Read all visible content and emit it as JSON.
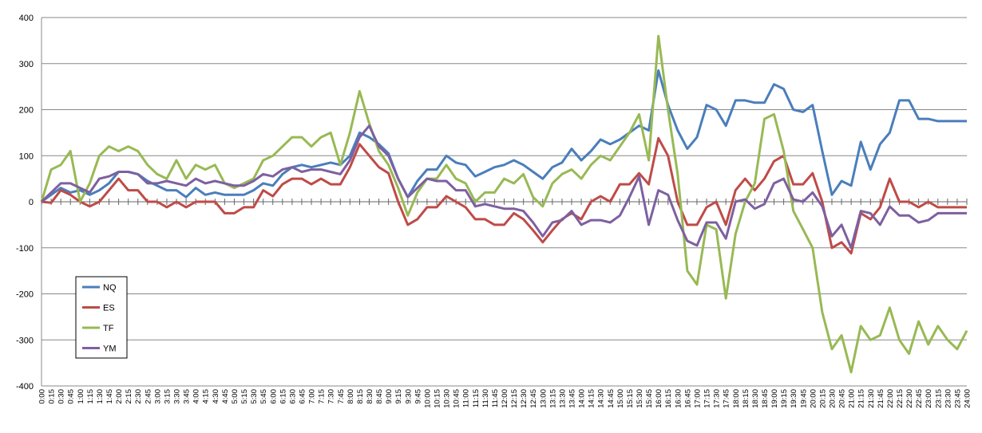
{
  "chart_data": {
    "type": "line",
    "title": "",
    "xlabel": "",
    "ylabel": "",
    "ylim": [
      -400,
      400
    ],
    "y_ticks": [
      400,
      300,
      200,
      100,
      0,
      -100,
      -200,
      -300,
      -400
    ],
    "grid": "horizontal",
    "legend_position": "lower-left",
    "categories": [
      "0:00",
      "0:15",
      "0:30",
      "0:45",
      "1:00",
      "1:15",
      "1:30",
      "1:45",
      "2:00",
      "2:15",
      "2:30",
      "2:45",
      "3:00",
      "3:15",
      "3:30",
      "3:45",
      "4:00",
      "4:15",
      "4:30",
      "4:45",
      "5:00",
      "5:15",
      "5:30",
      "5:45",
      "6:00",
      "6:15",
      "6:30",
      "6:45",
      "7:00",
      "7:15",
      "7:30",
      "7:45",
      "8:00",
      "8:15",
      "8:30",
      "8:45",
      "9:00",
      "9:15",
      "9:30",
      "9:45",
      "10:00",
      "10:15",
      "10:30",
      "10:45",
      "11:00",
      "11:15",
      "11:30",
      "11:45",
      "12:00",
      "12:15",
      "12:30",
      "12:45",
      "13:00",
      "13:15",
      "13:30",
      "13:45",
      "14:00",
      "14:15",
      "14:30",
      "14:45",
      "15:00",
      "15:15",
      "15:30",
      "15:45",
      "16:00",
      "16:15",
      "16:30",
      "16:45",
      "17:00",
      "17:15",
      "17:30",
      "17:45",
      "18:00",
      "18:15",
      "18:30",
      "18:45",
      "19:00",
      "19:15",
      "19:30",
      "19:45",
      "20:00",
      "20:15",
      "20:30",
      "20:45",
      "21:00",
      "21:15",
      "21:30",
      "21:45",
      "22:00",
      "22:15",
      "22:30",
      "22:45",
      "23:00",
      "23:15",
      "23:30",
      "23:45",
      "24:00"
    ],
    "series": [
      {
        "name": "NQ",
        "color": "#4a7ebb",
        "values": [
          0,
          15,
          30,
          20,
          25,
          15,
          25,
          40,
          65,
          65,
          60,
          45,
          35,
          25,
          25,
          10,
          30,
          15,
          20,
          15,
          15,
          15,
          25,
          40,
          35,
          60,
          75,
          80,
          75,
          80,
          85,
          80,
          100,
          150,
          140,
          125,
          105,
          50,
          10,
          45,
          70,
          70,
          100,
          85,
          80,
          55,
          65,
          75,
          80,
          90,
          80,
          65,
          50,
          75,
          85,
          115,
          90,
          110,
          135,
          125,
          135,
          150,
          165,
          155,
          285,
          210,
          155,
          115,
          140,
          210,
          200,
          165,
          220,
          220,
          215,
          215,
          255,
          245,
          200,
          195,
          210,
          110,
          15,
          45,
          35,
          130,
          70,
          125,
          150,
          220,
          220,
          180,
          180,
          175,
          175,
          175,
          175
        ]
      },
      {
        "name": "ES",
        "color": "#be4b48",
        "values": [
          0,
          -2,
          25,
          15,
          0,
          -10,
          0,
          25,
          50,
          25,
          25,
          0,
          0,
          -12,
          0,
          -12,
          0,
          0,
          0,
          -25,
          -25,
          -12,
          -12,
          25,
          12,
          38,
          50,
          50,
          38,
          50,
          38,
          38,
          75,
          125,
          100,
          75,
          62,
          0,
          -50,
          -38,
          -12,
          -12,
          12,
          0,
          -12,
          -38,
          -38,
          -50,
          -50,
          -25,
          -38,
          -62,
          -88,
          -62,
          -38,
          -25,
          -38,
          0,
          12,
          0,
          38,
          38,
          62,
          38,
          138,
          100,
          0,
          -50,
          -50,
          -12,
          0,
          -50,
          25,
          50,
          25,
          50,
          88,
          100,
          38,
          38,
          62,
          0,
          -100,
          -88,
          -112,
          -25,
          -38,
          -12,
          50,
          0,
          0,
          -12,
          0,
          -12,
          -12,
          -12,
          -12
        ]
      },
      {
        "name": "TF",
        "color": "#98b954",
        "values": [
          0,
          70,
          80,
          110,
          0,
          40,
          100,
          120,
          110,
          120,
          110,
          80,
          60,
          50,
          90,
          50,
          80,
          70,
          80,
          40,
          30,
          40,
          50,
          90,
          100,
          120,
          140,
          140,
          120,
          140,
          150,
          80,
          150,
          240,
          170,
          110,
          80,
          30,
          -30,
          20,
          50,
          50,
          80,
          50,
          40,
          0,
          20,
          20,
          50,
          40,
          60,
          10,
          -10,
          40,
          60,
          70,
          50,
          80,
          100,
          90,
          120,
          150,
          190,
          90,
          360,
          200,
          60,
          -150,
          -180,
          -50,
          -60,
          -210,
          -70,
          0,
          40,
          180,
          190,
          110,
          -20,
          -60,
          -100,
          -240,
          -320,
          -290,
          -370,
          -270,
          -300,
          -290,
          -230,
          -300,
          -330,
          -260,
          -310,
          -270,
          -300,
          -320,
          -280
        ]
      },
      {
        "name": "YM",
        "color": "#7d60a0",
        "values": [
          0,
          20,
          40,
          40,
          30,
          20,
          50,
          55,
          65,
          65,
          60,
          40,
          40,
          45,
          40,
          35,
          50,
          40,
          45,
          40,
          35,
          35,
          45,
          60,
          55,
          70,
          75,
          65,
          70,
          70,
          65,
          60,
          90,
          140,
          165,
          120,
          100,
          50,
          10,
          30,
          50,
          45,
          45,
          25,
          25,
          -10,
          -5,
          -10,
          -15,
          -15,
          -20,
          -45,
          -75,
          -45,
          -40,
          -20,
          -50,
          -40,
          -40,
          -45,
          -30,
          10,
          55,
          -50,
          25,
          15,
          -40,
          -85,
          -95,
          -45,
          -45,
          -80,
          0,
          5,
          -15,
          -5,
          40,
          50,
          5,
          0,
          20,
          -10,
          -75,
          -50,
          -100,
          -20,
          -25,
          -50,
          -10,
          -30,
          -30,
          -45,
          -40,
          -25,
          -25,
          -25,
          -25
        ]
      }
    ]
  }
}
